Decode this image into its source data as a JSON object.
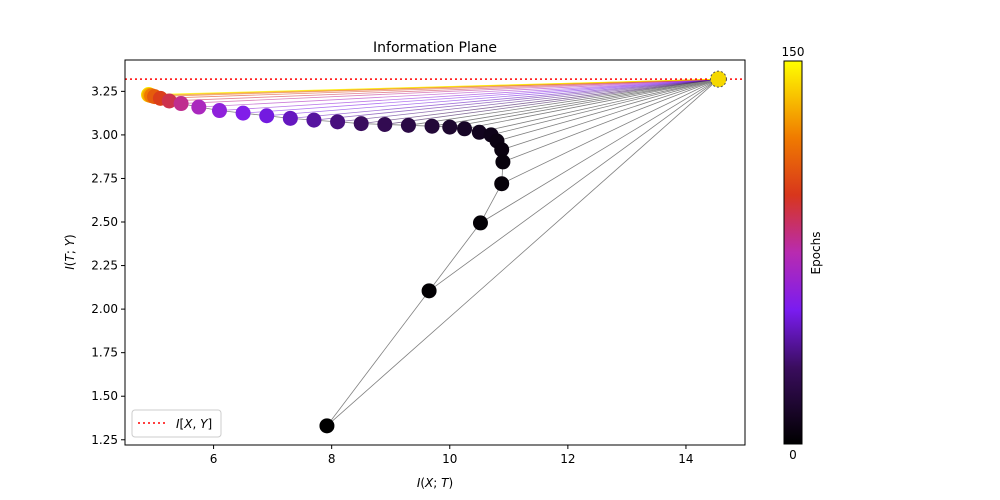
{
  "chart_data": {
    "type": "scatter",
    "title": "Information Plane",
    "xlabel": "I(X;T)",
    "ylabel": "I(T;Y)",
    "xlim": [
      4.5,
      15.0
    ],
    "ylim": [
      1.22,
      3.43
    ],
    "xticks": [
      6,
      8,
      10,
      12,
      14
    ],
    "yticks": [
      1.25,
      1.5,
      1.75,
      2.0,
      2.25,
      2.5,
      2.75,
      3.0,
      3.25
    ],
    "xtick_labels": [
      "6",
      "8",
      "10",
      "12",
      "14"
    ],
    "ytick_labels": [
      "1.25",
      "1.50",
      "1.75",
      "2.00",
      "2.25",
      "2.50",
      "2.75",
      "3.00",
      "3.25"
    ],
    "reference_line": {
      "y": 3.32,
      "color": "#ff0000",
      "style": "dotted"
    },
    "legend": {
      "placement": "lower-left",
      "entries": [
        "I[X,Y]"
      ]
    },
    "colorbar": {
      "label": "Epochs",
      "min": 0,
      "max": 150,
      "min_label": "0",
      "max_label": "150",
      "colormap": "gnuplot"
    },
    "apex": {
      "x": 14.55,
      "y": 3.32
    },
    "epoch_path": [
      {
        "epoch": 0,
        "x": 7.92,
        "y": 1.33
      },
      {
        "epoch": 1,
        "x": 9.65,
        "y": 2.105
      },
      {
        "epoch": 2,
        "x": 10.52,
        "y": 2.495
      },
      {
        "epoch": 3,
        "x": 10.88,
        "y": 2.72
      },
      {
        "epoch": 4,
        "x": 10.9,
        "y": 2.845
      },
      {
        "epoch": 5,
        "x": 10.88,
        "y": 2.915
      },
      {
        "epoch": 6,
        "x": 10.8,
        "y": 2.965
      },
      {
        "epoch": 8,
        "x": 10.7,
        "y": 3.0
      },
      {
        "epoch": 10,
        "x": 10.5,
        "y": 3.015
      },
      {
        "epoch": 12,
        "x": 10.25,
        "y": 3.035
      },
      {
        "epoch": 15,
        "x": 10.0,
        "y": 3.045
      },
      {
        "epoch": 18,
        "x": 9.7,
        "y": 3.05
      },
      {
        "epoch": 22,
        "x": 9.3,
        "y": 3.055
      },
      {
        "epoch": 26,
        "x": 8.9,
        "y": 3.06
      },
      {
        "epoch": 30,
        "x": 8.5,
        "y": 3.065
      },
      {
        "epoch": 35,
        "x": 8.1,
        "y": 3.075
      },
      {
        "epoch": 40,
        "x": 7.7,
        "y": 3.085
      },
      {
        "epoch": 45,
        "x": 7.3,
        "y": 3.095
      },
      {
        "epoch": 50,
        "x": 6.9,
        "y": 3.11
      },
      {
        "epoch": 55,
        "x": 6.5,
        "y": 3.125
      },
      {
        "epoch": 60,
        "x": 6.1,
        "y": 3.14
      },
      {
        "epoch": 70,
        "x": 5.75,
        "y": 3.16
      },
      {
        "epoch": 80,
        "x": 5.45,
        "y": 3.18
      },
      {
        "epoch": 90,
        "x": 5.25,
        "y": 3.195
      },
      {
        "epoch": 100,
        "x": 5.1,
        "y": 3.21
      },
      {
        "epoch": 110,
        "x": 5.0,
        "y": 3.22
      },
      {
        "epoch": 120,
        "x": 4.95,
        "y": 3.225
      },
      {
        "epoch": 130,
        "x": 4.92,
        "y": 3.228
      },
      {
        "epoch": 140,
        "x": 4.9,
        "y": 3.23
      },
      {
        "epoch": 150,
        "x": 4.9,
        "y": 3.232
      }
    ]
  }
}
